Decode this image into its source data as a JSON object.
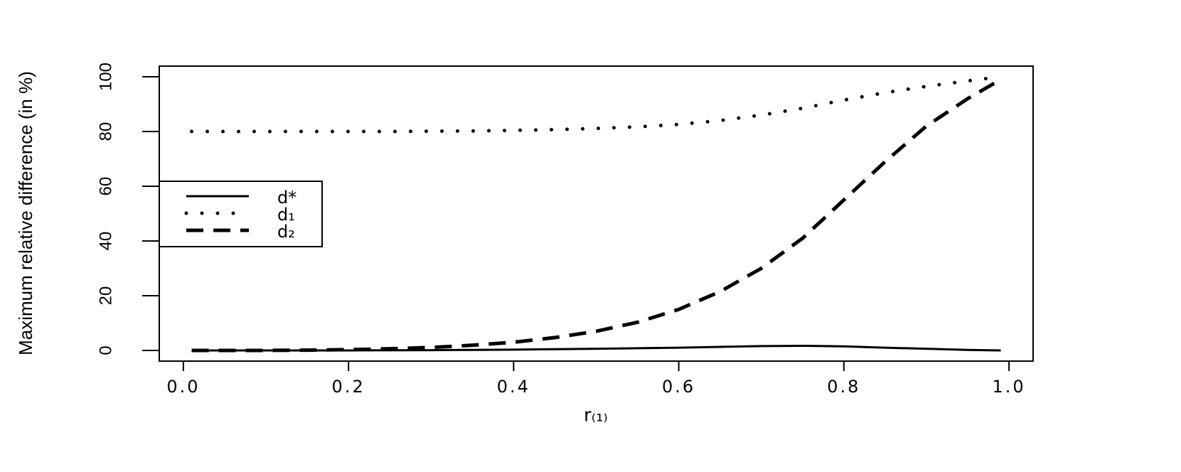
{
  "chart_data": {
    "type": "line",
    "xlabel": "r₍₁₎",
    "ylabel": "Maximum relative difference (in %)",
    "x": [
      0.01,
      0.05,
      0.1,
      0.15,
      0.2,
      0.25,
      0.3,
      0.35,
      0.4,
      0.45,
      0.5,
      0.55,
      0.6,
      0.65,
      0.7,
      0.75,
      0.8,
      0.85,
      0.9,
      0.95,
      0.99
    ],
    "series": [
      {
        "name": "d*",
        "color": "#000000",
        "style": "solid",
        "values": [
          0,
          0,
          0,
          0,
          0,
          0.05,
          0.1,
          0.2,
          0.3,
          0.45,
          0.6,
          0.8,
          1.0,
          1.3,
          1.6,
          1.7,
          1.5,
          1.0,
          0.6,
          0.2,
          0
        ]
      },
      {
        "name": "d₁",
        "color": "#000000",
        "style": "dotted",
        "values": [
          80,
          80,
          80,
          80,
          80,
          80,
          80.1,
          80.2,
          80.4,
          80.7,
          81.1,
          81.7,
          82.6,
          84,
          86,
          88.5,
          91.5,
          94.2,
          96.5,
          98.5,
          100
        ]
      },
      {
        "name": "d₂",
        "color": "#000000",
        "style": "dashed",
        "values": [
          0,
          0,
          0,
          0.1,
          0.3,
          0.6,
          1.1,
          1.9,
          3,
          4.7,
          7,
          10.3,
          15,
          21.5,
          30,
          41,
          55,
          69,
          82,
          92,
          99
        ]
      }
    ],
    "xlim": [
      -0.0292,
      1.0292
    ],
    "ylim": [
      -3.9,
      103.9
    ],
    "xticks": [
      {
        "value": 0,
        "label": "0.0"
      },
      0.2,
      0.4,
      0.6,
      0.8,
      {
        "value": 1,
        "label": "1.0"
      }
    ],
    "yticks": [
      0,
      20,
      40,
      60,
      80,
      100
    ],
    "legend": "left"
  }
}
